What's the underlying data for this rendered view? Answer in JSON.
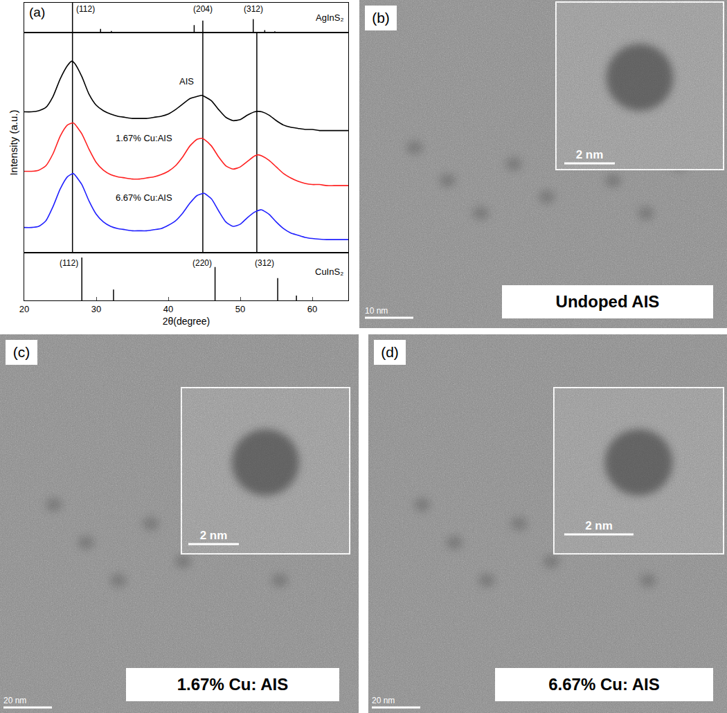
{
  "chart_data": {
    "type": "line",
    "panel_label": "(a)",
    "x_label": "2θ(degree)",
    "y_label": "Intensity (a.u.)",
    "xlim": [
      20,
      65
    ],
    "xticks": [
      20,
      30,
      40,
      50,
      60
    ],
    "ylim": [
      0,
      10
    ],
    "tick_labels": "x",
    "grid": false,
    "reference_lines": [
      26.7,
      44.8,
      52.3
    ],
    "series": [
      {
        "name": "AIS",
        "color": "#000000",
        "x": [
          20,
          21,
          22,
          23,
          24,
          25,
          26,
          26.6,
          27,
          28,
          29,
          30,
          31,
          32,
          33,
          34,
          35,
          36,
          37,
          38,
          39,
          40,
          41,
          42,
          43,
          44,
          44.7,
          45,
          46,
          47,
          48,
          49,
          50,
          51,
          52,
          52.5,
          53,
          54,
          55,
          56,
          57,
          58,
          59,
          60,
          61,
          62,
          63,
          64,
          65
        ],
        "values": [
          6.4,
          6.4,
          6.45,
          6.6,
          7.1,
          7.9,
          8.5,
          8.7,
          8.6,
          8.0,
          7.2,
          6.7,
          6.45,
          6.3,
          6.2,
          6.15,
          6.1,
          6.1,
          6.1,
          6.15,
          6.2,
          6.3,
          6.5,
          6.75,
          7.0,
          7.1,
          7.15,
          7.1,
          6.9,
          6.5,
          6.15,
          6.0,
          6.05,
          6.25,
          6.4,
          6.42,
          6.4,
          6.25,
          6.0,
          5.8,
          5.7,
          5.65,
          5.6,
          5.6,
          5.55,
          5.55,
          5.55,
          5.55,
          5.55
        ]
      },
      {
        "name": "1.67% Cu:AIS",
        "color": "#ff2020",
        "x": [
          20,
          21,
          22,
          23,
          24,
          25,
          26,
          26.8,
          27,
          28,
          29,
          30,
          31,
          32,
          33,
          34,
          35,
          36,
          37,
          38,
          39,
          40,
          41,
          42,
          43,
          44,
          44.7,
          45,
          46,
          47,
          48,
          49,
          50,
          51,
          52,
          52.5,
          53,
          54,
          55,
          56,
          57,
          58,
          59,
          60,
          61,
          62,
          63,
          64,
          65
        ],
        "values": [
          3.7,
          3.7,
          3.75,
          3.95,
          4.5,
          5.3,
          5.8,
          5.9,
          5.85,
          5.4,
          4.7,
          4.1,
          3.75,
          3.55,
          3.45,
          3.4,
          3.35,
          3.35,
          3.4,
          3.45,
          3.55,
          3.7,
          3.95,
          4.35,
          4.85,
          5.15,
          5.2,
          5.15,
          4.85,
          4.35,
          3.95,
          3.8,
          3.9,
          4.15,
          4.4,
          4.45,
          4.4,
          4.2,
          3.9,
          3.6,
          3.4,
          3.25,
          3.15,
          3.1,
          3.1,
          3.05,
          3.05,
          3.05,
          3.05
        ]
      },
      {
        "name": "6.67% Cu:AIS",
        "color": "#2020ff",
        "x": [
          20,
          21,
          22,
          23,
          24,
          25,
          26,
          26.8,
          27,
          28,
          29,
          30,
          31,
          32,
          33,
          34,
          35,
          36,
          37,
          38,
          39,
          40,
          41,
          42,
          43,
          44,
          44.9,
          45,
          46,
          47,
          48,
          49,
          50,
          51,
          52,
          52.8,
          53,
          54,
          55,
          56,
          57,
          58,
          59,
          60,
          61,
          62,
          63,
          64,
          65
        ],
        "values": [
          1.15,
          1.15,
          1.2,
          1.45,
          2.1,
          2.9,
          3.45,
          3.6,
          3.55,
          3.1,
          2.35,
          1.75,
          1.4,
          1.2,
          1.1,
          1.05,
          1.0,
          1.0,
          1.0,
          1.05,
          1.1,
          1.25,
          1.45,
          1.8,
          2.25,
          2.6,
          2.7,
          2.7,
          2.45,
          1.9,
          1.4,
          1.2,
          1.3,
          1.6,
          1.85,
          1.95,
          1.95,
          1.75,
          1.4,
          1.1,
          0.9,
          0.8,
          0.7,
          0.65,
          0.62,
          0.6,
          0.6,
          0.6,
          0.6
        ]
      }
    ],
    "reference_patterns": [
      {
        "name": "AgInS₂",
        "ylim": [
          0,
          100
        ],
        "x": [
          26.7,
          30.6,
          32.1,
          43.6,
          44.8,
          51.8,
          53.4,
          54.8
        ],
        "values": [
          100,
          12,
          5,
          25,
          40,
          45,
          8,
          4
        ],
        "peak_labels": [
          {
            "x": 26.7,
            "label": "(112)"
          },
          {
            "x": 44.8,
            "label": "(204)"
          },
          {
            "x": 51.8,
            "label": "(312)"
          }
        ]
      },
      {
        "name": "CuInS₂",
        "ylim": [
          0,
          100
        ],
        "x": [
          28.0,
          32.4,
          46.5,
          55.2,
          57.8
        ],
        "values": [
          90,
          23,
          70,
          47,
          10
        ],
        "peak_labels": [
          {
            "x": 28.0,
            "label": "(112)"
          },
          {
            "x": 46.5,
            "label": "(220)"
          },
          {
            "x": 55.2,
            "label": "(312)"
          }
        ]
      }
    ]
  },
  "images": [
    {
      "label": "(b)",
      "caption": "Undoped AIS",
      "scale_bar": "10 nm",
      "inset_scale_bar": "2 nm"
    },
    {
      "label": "(c)",
      "caption": "1.67% Cu: AIS",
      "scale_bar": "20 nm",
      "inset_scale_bar": "2 nm"
    },
    {
      "label": "(d)",
      "caption": "6.67% Cu: AIS",
      "scale_bar": "20 nm",
      "inset_scale_bar": "2 nm"
    }
  ]
}
